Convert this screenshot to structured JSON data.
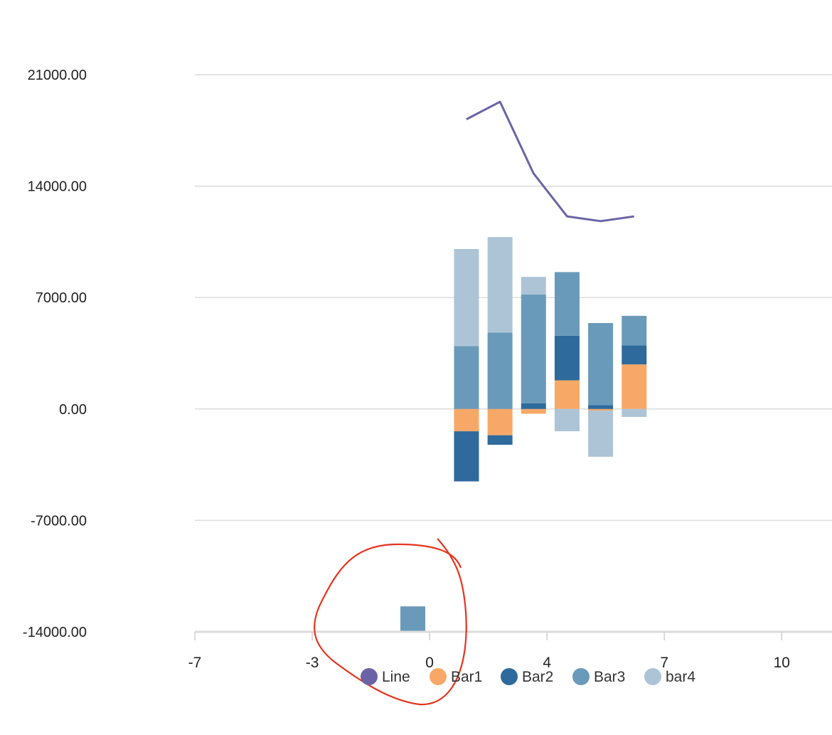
{
  "chart_data": {
    "type": "bar",
    "stacked": true,
    "x": [
      0,
      1,
      2,
      3,
      4,
      5
    ],
    "series": [
      {
        "name": "Line",
        "type": "line",
        "color": "#6a64a6",
        "values": [
          18200,
          19300,
          14800,
          12100,
          11800,
          12100
        ]
      },
      {
        "name": "Bar1",
        "type": "bar",
        "color": "#f8a866",
        "values": [
          -1400,
          -1650,
          -300,
          1800,
          -100,
          2800
        ]
      },
      {
        "name": "Bar2",
        "type": "bar",
        "color": "#2e6a9c",
        "values": [
          -3150,
          -600,
          350,
          2800,
          250,
          1200
        ]
      },
      {
        "name": "Bar3",
        "type": "bar",
        "color": "#6a9aba",
        "values": [
          3950,
          4800,
          6850,
          4000,
          5150,
          1850
        ]
      },
      {
        "name": "bar4",
        "type": "bar",
        "color": "#adc4d7",
        "values": [
          6100,
          6000,
          1100,
          -1400,
          -2900,
          -500
        ]
      }
    ],
    "extra_bar": {
      "x": -0.5,
      "value": -1600,
      "base": -14000,
      "color": "#6a9aba"
    },
    "y_ticks": [
      "21000.00",
      "14000.00",
      "7000.00",
      "0.00",
      "-7000.00",
      "-14000.00"
    ],
    "y_tick_values": [
      21000,
      14000,
      7000,
      0,
      -7000,
      -14000
    ],
    "x_ticks": [
      "-7",
      "-3",
      "0",
      "4",
      "7",
      "10"
    ],
    "x_tick_values": [
      -7,
      -3.5,
      0,
      3.5,
      7,
      10.5
    ],
    "xlim": [
      -7,
      12
    ],
    "ylim": [
      -14000,
      21000
    ],
    "grid": true,
    "legend_position": "bottom"
  }
}
